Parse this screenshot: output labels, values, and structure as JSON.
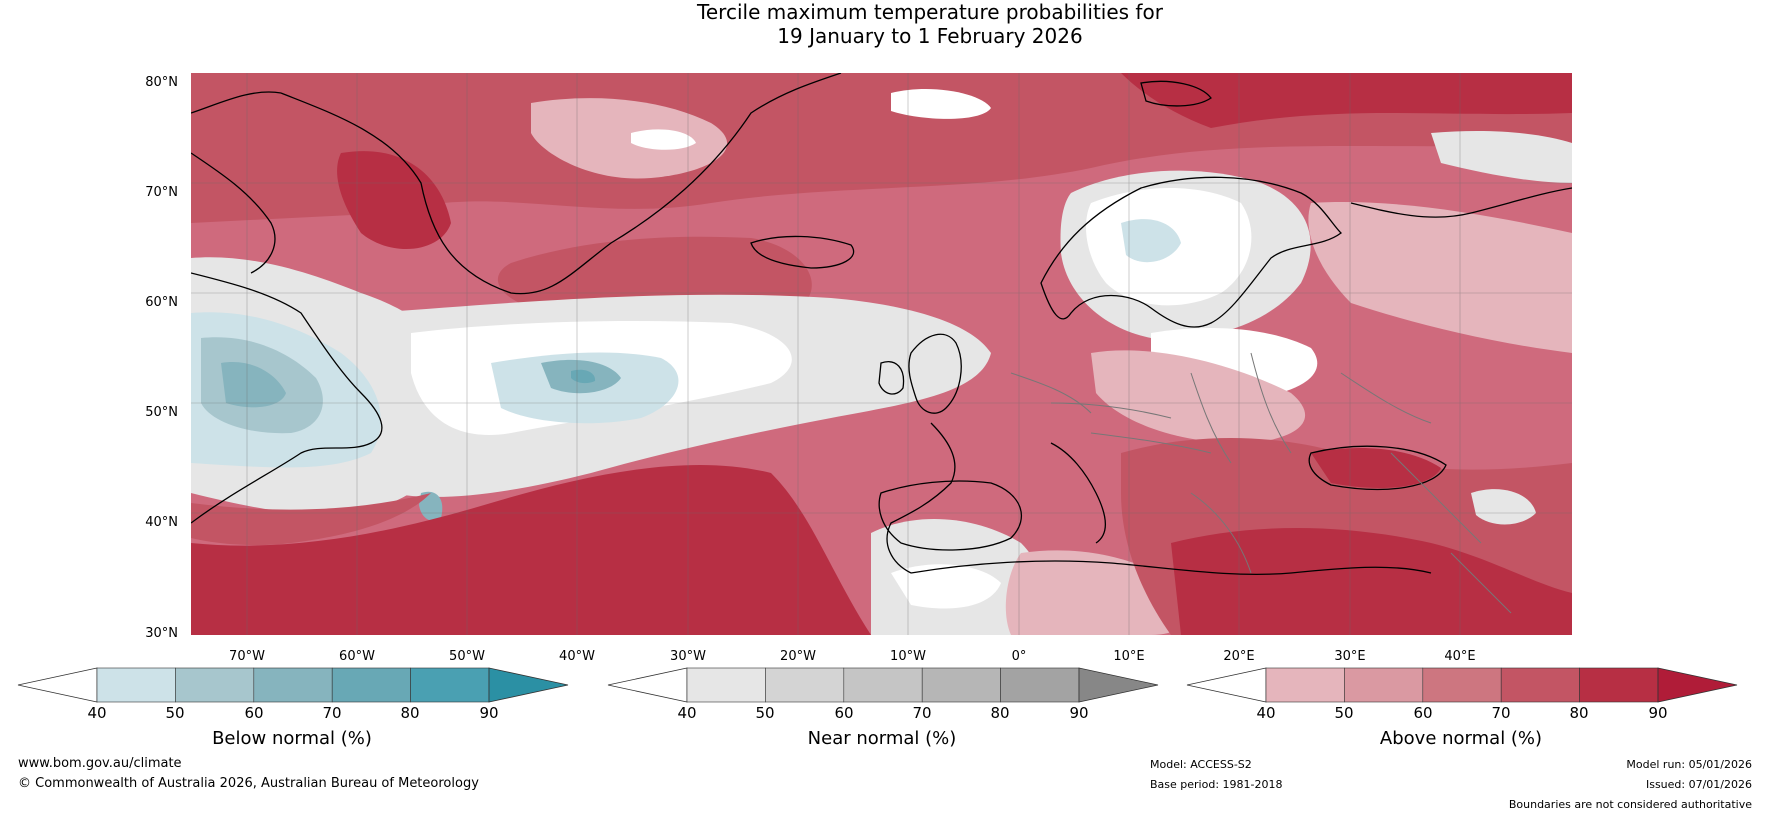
{
  "title": {
    "line1": "Tercile maximum temperature probabilities for",
    "line2": "19 January to 1 February 2026"
  },
  "map": {
    "lat_labels": [
      "80°N",
      "70°N",
      "60°N",
      "50°N",
      "40°N",
      "30°N"
    ],
    "lon_labels": [
      "70°W",
      "60°W",
      "50°W",
      "40°W",
      "30°W",
      "20°W",
      "10°W",
      "0°",
      "10°E",
      "20°E",
      "30°E",
      "40°E"
    ],
    "extent": {
      "lon_min": -77,
      "lon_max": 48,
      "lat_min": 30,
      "lat_max": 81
    }
  },
  "colorbars": [
    {
      "name": "below",
      "label": "Below normal (%)",
      "ticks": [
        "40",
        "50",
        "60",
        "70",
        "80",
        "90"
      ],
      "colors": [
        "#ffffff",
        "#cde2e8",
        "#a7c6cd",
        "#86b4be",
        "#68a8b5",
        "#4aa0b2",
        "#2b90a4"
      ]
    },
    {
      "name": "near",
      "label": "Near normal (%)",
      "ticks": [
        "40",
        "50",
        "60",
        "70",
        "80",
        "90"
      ],
      "colors": [
        "#ffffff",
        "#e6e6e6",
        "#d4d4d4",
        "#c5c5c5",
        "#b6b6b6",
        "#a3a3a3",
        "#878787"
      ]
    },
    {
      "name": "above",
      "label": "Above normal (%)",
      "ticks": [
        "40",
        "50",
        "60",
        "70",
        "80",
        "90"
      ],
      "colors": [
        "#ffffff",
        "#e5b5bc",
        "#da99a2",
        "#cd7680",
        "#c35564",
        "#b72f44",
        "#b01c38"
      ]
    }
  ],
  "footer": {
    "website": "www.bom.gov.au/climate",
    "copyright": "© Commonwealth of Australia 2026, Australian Bureau of Meteorology",
    "model": "Model: ACCESS-S2",
    "base_period": "Base period: 1981-2018",
    "model_run": "Model run: 05/01/2026",
    "issued": "Issued: 07/01/2026",
    "disclaimer": "Boundaries are not considered authoritative"
  }
}
